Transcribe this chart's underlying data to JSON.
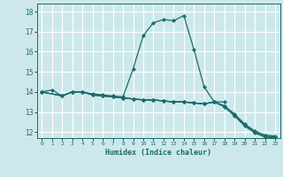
{
  "title": "",
  "xlabel": "Humidex (Indice chaleur)",
  "ylabel": "",
  "xlim": [
    -0.5,
    23.5
  ],
  "ylim": [
    11.7,
    18.4
  ],
  "yticks": [
    12,
    13,
    14,
    15,
    16,
    17,
    18
  ],
  "xticks": [
    0,
    1,
    2,
    3,
    4,
    5,
    6,
    7,
    8,
    9,
    10,
    11,
    12,
    13,
    14,
    15,
    16,
    17,
    18,
    19,
    20,
    21,
    22,
    23
  ],
  "bg_color": "#cde8ea",
  "grid_color": "#ffffff",
  "line_color": "#1a6b6b",
  "series": [
    {
      "x": [
        0,
        1,
        2,
        3,
        4,
        5,
        6,
        7,
        8,
        9,
        10,
        11,
        12,
        13,
        14,
        15,
        16,
        17,
        18
      ],
      "y": [
        14.0,
        14.1,
        13.8,
        14.0,
        14.0,
        13.9,
        13.85,
        13.8,
        13.75,
        15.15,
        16.8,
        17.45,
        17.6,
        17.55,
        17.8,
        16.1,
        14.25,
        13.5,
        13.5
      ]
    },
    {
      "x": [
        0,
        2,
        3,
        4,
        5,
        6,
        7,
        8,
        9,
        10,
        11,
        12,
        13,
        14,
        15,
        16,
        17,
        18,
        19,
        20,
        21,
        22,
        23
      ],
      "y": [
        14.0,
        13.8,
        14.0,
        14.0,
        13.85,
        13.8,
        13.75,
        13.7,
        13.65,
        13.6,
        13.6,
        13.55,
        13.5,
        13.5,
        13.45,
        13.4,
        13.5,
        13.3,
        12.9,
        12.4,
        12.05,
        11.85,
        11.8
      ]
    },
    {
      "x": [
        0,
        2,
        3,
        4,
        5,
        6,
        7,
        8,
        9,
        10,
        11,
        12,
        13,
        14,
        15,
        16,
        17,
        18,
        19,
        20,
        21,
        22,
        23
      ],
      "y": [
        14.0,
        13.8,
        14.0,
        14.0,
        13.85,
        13.8,
        13.75,
        13.7,
        13.65,
        13.6,
        13.6,
        13.55,
        13.5,
        13.5,
        13.45,
        13.4,
        13.5,
        13.3,
        12.85,
        12.35,
        12.0,
        11.8,
        11.75
      ]
    },
    {
      "x": [
        0,
        2,
        3,
        4,
        5,
        6,
        7,
        8,
        9,
        10,
        11,
        12,
        13,
        14,
        15,
        16,
        17,
        18,
        19,
        20,
        21,
        22,
        23
      ],
      "y": [
        14.0,
        13.8,
        14.0,
        14.0,
        13.85,
        13.8,
        13.75,
        13.7,
        13.65,
        13.6,
        13.6,
        13.55,
        13.5,
        13.5,
        13.45,
        13.4,
        13.5,
        13.25,
        12.8,
        12.3,
        11.95,
        11.75,
        11.7
      ]
    }
  ]
}
